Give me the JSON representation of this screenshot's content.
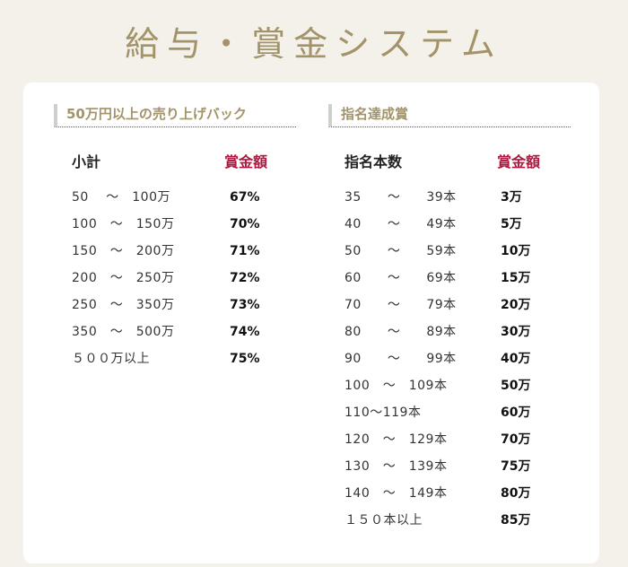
{
  "page_title": "給与・賞金システム",
  "sales_back": {
    "heading": "50万円以上の売り上げバック",
    "col_subtotal": "小計",
    "col_prize": "賞金額",
    "rows": [
      {
        "range": "50　 ～　100万",
        "rate": "67%"
      },
      {
        "range": "100　～　150万",
        "rate": "70%"
      },
      {
        "range": "150　～　200万",
        "rate": "71%"
      },
      {
        "range": "200　～　250万",
        "rate": "72%"
      },
      {
        "range": "250　～　350万",
        "rate": "73%"
      },
      {
        "range": "350　～　500万",
        "rate": "74%"
      },
      {
        "range": "５００万以上",
        "rate": "75%"
      }
    ]
  },
  "nomination": {
    "heading": "指名達成賞",
    "col_count": "指名本数",
    "col_prize": "賞金額",
    "rows": [
      {
        "range": "35　　～　　39本",
        "prize": "3万"
      },
      {
        "range": "40　　～　　49本",
        "prize": "5万"
      },
      {
        "range": "50　　～　　59本",
        "prize": "10万"
      },
      {
        "range": "60　　～　　69本",
        "prize": "15万"
      },
      {
        "range": "70　　～　　79本",
        "prize": "20万"
      },
      {
        "range": "80　　～　　89本",
        "prize": "30万"
      },
      {
        "range": "90　　～　　99本",
        "prize": "40万"
      },
      {
        "range": "100　～　109本",
        "prize": "50万"
      },
      {
        "range": "110～119本",
        "prize": "60万"
      },
      {
        "range": "120　～　129本",
        "prize": "70万"
      },
      {
        "range": "130　～　139本",
        "prize": "75万"
      },
      {
        "range": "140　～　149本",
        "prize": "80万"
      },
      {
        "range": "１５０本以上",
        "prize": "85万"
      }
    ]
  }
}
